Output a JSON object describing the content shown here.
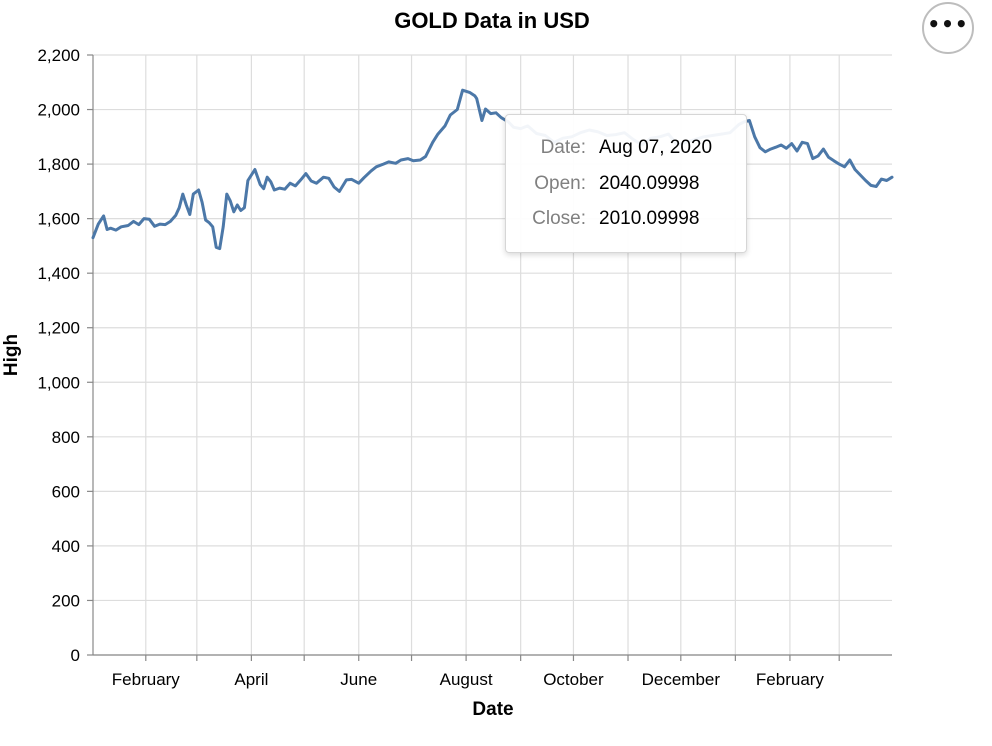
{
  "chart_data": {
    "type": "line",
    "title": "GOLD Data in USD",
    "xlabel": "Date",
    "ylabel": "High",
    "x_range": [
      "2020-01-02",
      "2021-03-31"
    ],
    "ylim": [
      0,
      2200
    ],
    "y_ticks": [
      0,
      200,
      400,
      600,
      800,
      1000,
      1200,
      1400,
      1600,
      1800,
      2000,
      2200
    ],
    "y_tick_labels": [
      "0",
      "200",
      "400",
      "600",
      "800",
      "1,000",
      "1,200",
      "1,400",
      "1,600",
      "1,800",
      "2,000",
      "2,200"
    ],
    "x_ticks": [
      "2020-02-01",
      "2020-03-01",
      "2020-04-01",
      "2020-05-01",
      "2020-06-01",
      "2020-07-01",
      "2020-08-01",
      "2020-09-01",
      "2020-10-01",
      "2020-11-01",
      "2020-12-01",
      "2021-01-01",
      "2021-02-01",
      "2021-03-01"
    ],
    "x_tick_labels": [
      "February",
      "",
      "April",
      "",
      "June",
      "",
      "August",
      "",
      "October",
      "",
      "December",
      "",
      "February",
      ""
    ],
    "grid": true,
    "line_color": "#4c78a8",
    "series": [
      {
        "x": [
          "2020-01-02",
          "2020-01-05",
          "2020-01-08",
          "2020-01-10",
          "2020-01-12",
          "2020-01-15",
          "2020-01-18",
          "2020-01-22",
          "2020-01-25",
          "2020-01-28",
          "2020-01-31",
          "2020-02-03",
          "2020-02-06",
          "2020-02-09",
          "2020-02-12",
          "2020-02-15",
          "2020-02-18",
          "2020-02-20",
          "2020-02-22",
          "2020-02-24",
          "2020-02-26",
          "2020-02-28",
          "2020-03-02",
          "2020-03-04",
          "2020-03-06",
          "2020-03-08",
          "2020-03-10",
          "2020-03-12",
          "2020-03-14",
          "2020-03-16",
          "2020-03-18",
          "2020-03-20",
          "2020-03-22",
          "2020-03-24",
          "2020-03-26",
          "2020-03-28",
          "2020-03-30",
          "2020-04-01",
          "2020-04-03",
          "2020-04-06",
          "2020-04-08",
          "2020-04-10",
          "2020-04-12",
          "2020-04-14",
          "2020-04-17",
          "2020-04-20",
          "2020-04-23",
          "2020-04-26",
          "2020-04-29",
          "2020-05-02",
          "2020-05-05",
          "2020-05-08",
          "2020-05-12",
          "2020-05-15",
          "2020-05-18",
          "2020-05-21",
          "2020-05-25",
          "2020-05-28",
          "2020-06-01",
          "2020-06-04",
          "2020-06-08",
          "2020-06-11",
          "2020-06-15",
          "2020-06-18",
          "2020-06-22",
          "2020-06-25",
          "2020-06-29",
          "2020-07-02",
          "2020-07-06",
          "2020-07-09",
          "2020-07-13",
          "2020-07-16",
          "2020-07-20",
          "2020-07-23",
          "2020-07-27",
          "2020-07-30",
          "2020-08-03",
          "2020-08-06",
          "2020-08-07",
          "2020-08-10",
          "2020-08-12",
          "2020-08-15",
          "2020-08-18",
          "2020-08-21",
          "2020-08-25",
          "2020-08-28",
          "2020-09-01",
          "2020-09-05",
          "2020-09-10",
          "2020-09-15",
          "2020-09-20",
          "2020-09-25",
          "2020-09-30",
          "2020-10-05",
          "2020-10-10",
          "2020-10-15",
          "2020-10-20",
          "2020-10-25",
          "2020-10-30",
          "2020-11-04",
          "2020-11-09",
          "2020-11-14",
          "2020-11-19",
          "2020-11-24",
          "2020-11-29",
          "2020-12-04",
          "2020-12-09",
          "2020-12-14",
          "2020-12-19",
          "2020-12-24",
          "2020-12-29",
          "2021-01-03",
          "2021-01-06",
          "2021-01-09",
          "2021-01-12",
          "2021-01-15",
          "2021-01-18",
          "2021-01-21",
          "2021-01-24",
          "2021-01-27",
          "2021-01-30",
          "2021-02-02",
          "2021-02-05",
          "2021-02-08",
          "2021-02-11",
          "2021-02-14",
          "2021-02-17",
          "2021-02-20",
          "2021-02-23",
          "2021-02-26",
          "2021-03-01",
          "2021-03-04",
          "2021-03-07",
          "2021-03-10",
          "2021-03-13",
          "2021-03-16",
          "2021-03-19",
          "2021-03-22",
          "2021-03-25",
          "2021-03-28",
          "2021-03-31"
        ],
        "y": [
          1530,
          1580,
          1610,
          1560,
          1565,
          1558,
          1570,
          1575,
          1590,
          1578,
          1600,
          1598,
          1572,
          1580,
          1578,
          1590,
          1612,
          1640,
          1690,
          1650,
          1615,
          1690,
          1705,
          1660,
          1595,
          1585,
          1570,
          1495,
          1490,
          1570,
          1690,
          1665,
          1625,
          1650,
          1630,
          1640,
          1740,
          1760,
          1780,
          1725,
          1710,
          1752,
          1735,
          1705,
          1712,
          1708,
          1730,
          1720,
          1742,
          1765,
          1738,
          1730,
          1752,
          1748,
          1716,
          1700,
          1742,
          1744,
          1730,
          1750,
          1775,
          1790,
          1800,
          1808,
          1803,
          1815,
          1820,
          1812,
          1815,
          1828,
          1880,
          1910,
          1940,
          1980,
          2000,
          2071,
          2063,
          2050,
          2040,
          1960,
          2002,
          1985,
          1988,
          1970,
          1955,
          1935,
          1930,
          1940,
          1912,
          1905,
          1880,
          1895,
          1900,
          1915,
          1925,
          1918,
          1905,
          1908,
          1915,
          1890,
          1870,
          1895,
          1900,
          1910,
          1870,
          1880,
          1890,
          1900,
          1905,
          1910,
          1915,
          1945,
          1955,
          1960,
          1900,
          1860,
          1845,
          1855,
          1862,
          1870,
          1858,
          1875,
          1848,
          1880,
          1875,
          1820,
          1830,
          1855,
          1825,
          1812,
          1800,
          1790,
          1815,
          1780,
          1760,
          1740,
          1722,
          1718,
          1745,
          1740,
          1752
        ]
      }
    ]
  },
  "tooltip": {
    "rows": [
      {
        "key": "Date:",
        "value": "Aug 07, 2020"
      },
      {
        "key": "Open:",
        "value": "2040.09998"
      },
      {
        "key": "Close:",
        "value": "2010.09998"
      }
    ]
  },
  "menu": {
    "icon": "more-horizontal-icon",
    "label": "•••"
  }
}
